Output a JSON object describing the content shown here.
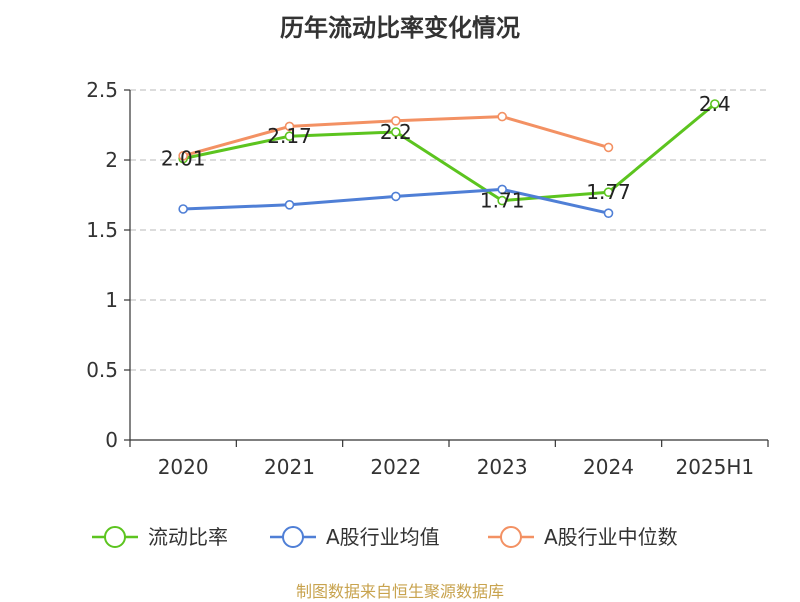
{
  "chart_data": {
    "type": "line",
    "title": "历年流动比率变化情况",
    "categories": [
      "2020",
      "2021",
      "2022",
      "2023",
      "2024",
      "2025H1"
    ],
    "y_ticks": [
      "0",
      "0.5",
      "1",
      "1.5",
      "2",
      "2.5"
    ],
    "ylim": [
      0,
      2.5
    ],
    "grid": true,
    "legend_position": "bottom",
    "series": [
      {
        "name": "流动比率",
        "color": "#5cc41f",
        "values": [
          2.01,
          2.17,
          2.2,
          1.71,
          1.77,
          2.4
        ],
        "labels": [
          "2.01",
          "2.17",
          "2.2",
          "1.71",
          "1.77",
          "2.4"
        ]
      },
      {
        "name": "A股行业均值",
        "color": "#4f7fd6",
        "values": [
          1.65,
          1.68,
          1.74,
          1.79,
          1.62,
          null
        ]
      },
      {
        "name": "A股行业中位数",
        "color": "#f39163",
        "values": [
          2.03,
          2.24,
          2.28,
          2.31,
          2.09,
          null
        ]
      }
    ]
  },
  "footer": {
    "source": "制图数据来自恒生聚源数据库"
  }
}
